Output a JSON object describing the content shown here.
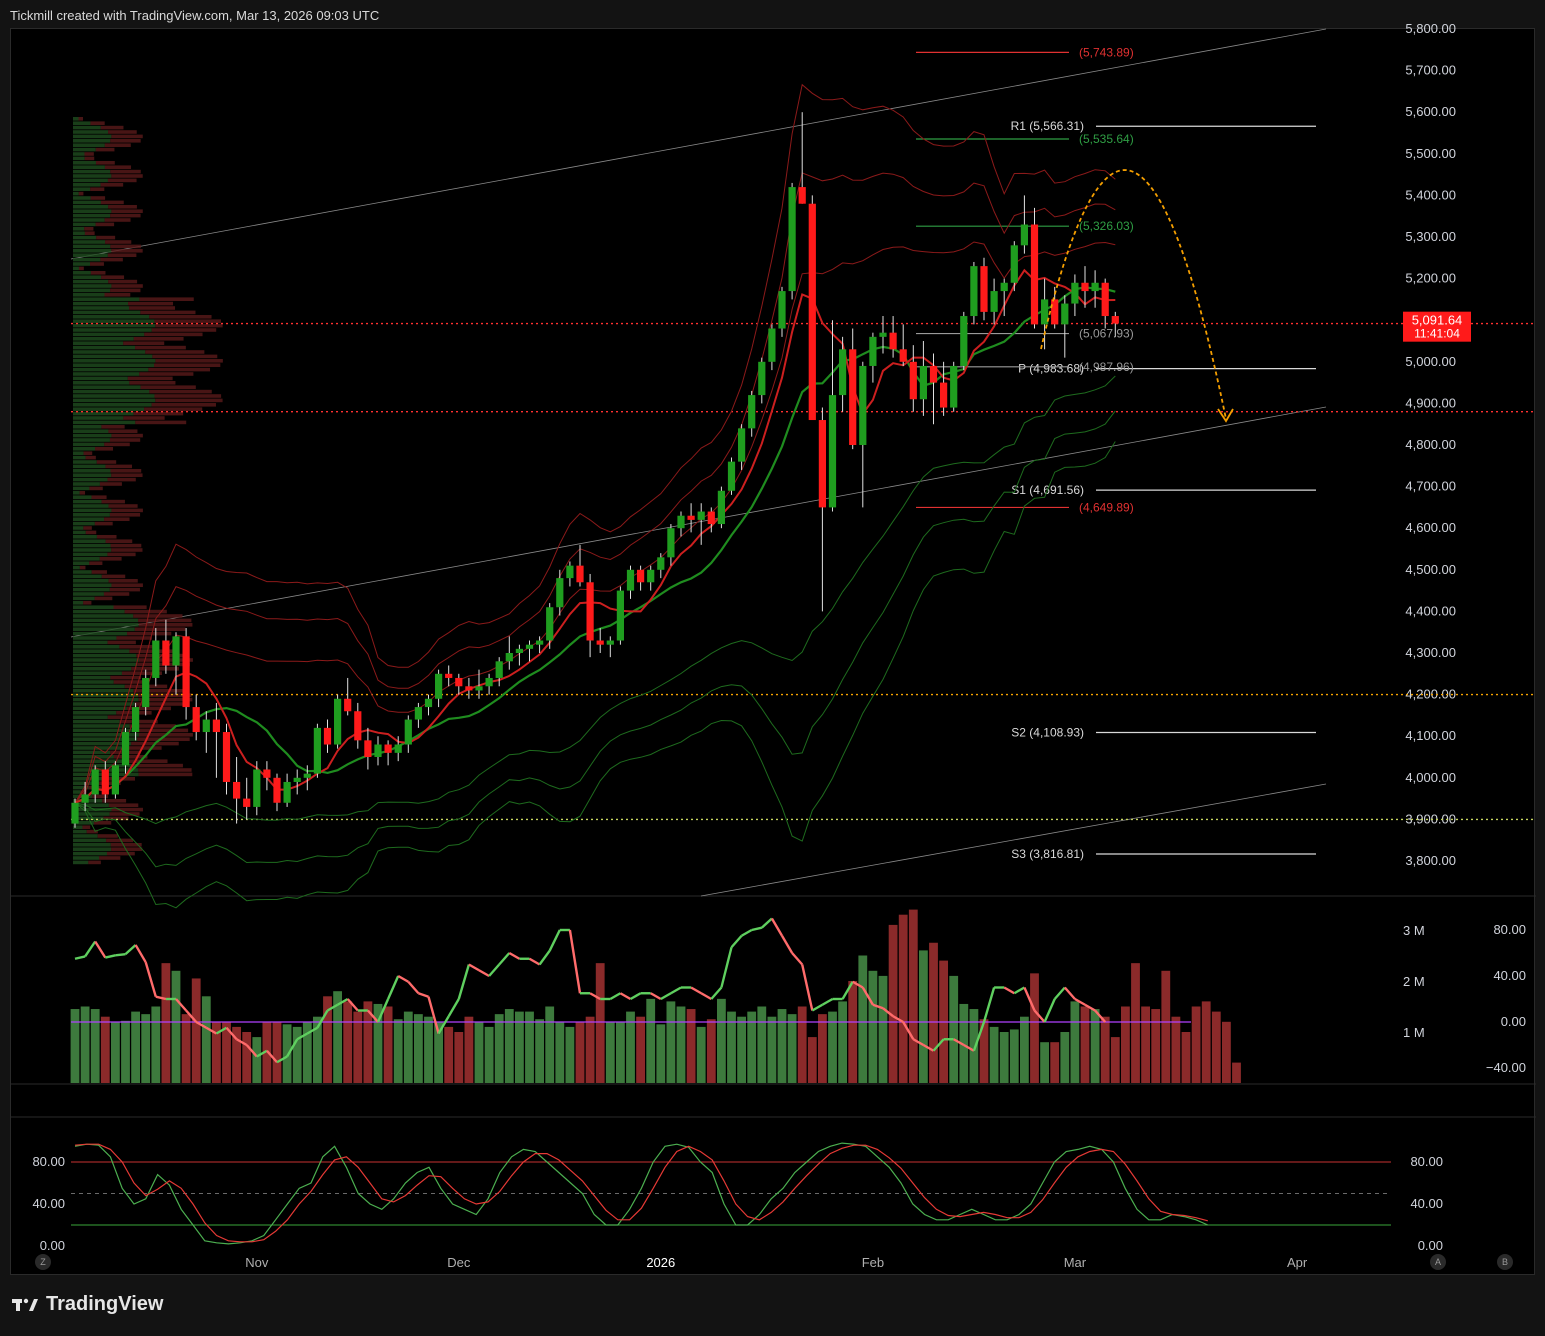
{
  "header": {
    "text": "Tickmill created with TradingView.com, Mar 13, 2026 09:03 UTC"
  },
  "footer": {
    "brand": "TradingView"
  },
  "corner_buttons": {
    "left": "Z",
    "right_a": "A",
    "right_b": "B"
  },
  "colors": {
    "up": "#1f9d1f",
    "down": "#ff1a1a",
    "price_tag": "#ff1a1a",
    "level_green": "#2f9e44",
    "level_red": "#e03131",
    "arc": "#f59f00"
  },
  "chart_data": [
    {
      "type": "candlestick",
      "panel": "price",
      "yaxis_ticks": [
        "5,800.00",
        "5,700.00",
        "5,600.00",
        "5,500.00",
        "5,400.00",
        "5,300.00",
        "5,200.00",
        "5,100.00",
        "5,000.00",
        "4,900.00",
        "4,800.00",
        "4,700.00",
        "4,600.00",
        "4,500.00",
        "4,400.00",
        "4,300.00",
        "4,200.00",
        "4,100.00",
        "4,000.00",
        "3,900.00",
        "3,800.00"
      ],
      "ylim": [
        3720,
        5810
      ],
      "xaxis_ticks": [
        {
          "label": "Nov",
          "bar": 18
        },
        {
          "label": "Dec",
          "bar": 38
        },
        {
          "label": "2026",
          "bar": 58
        },
        {
          "label": "Feb",
          "bar": 79
        },
        {
          "label": "Mar",
          "bar": 99
        },
        {
          "label": "Apr",
          "bar": 121
        }
      ],
      "last_price": "5,091.64",
      "countdown": "11:41:04",
      "candles": [
        [
          3890,
          3950,
          3880,
          3940
        ],
        [
          3940,
          3990,
          3920,
          3960
        ],
        [
          3960,
          4030,
          3940,
          4020
        ],
        [
          4020,
          4040,
          3940,
          3960
        ],
        [
          3960,
          4040,
          3950,
          4030
        ],
        [
          4030,
          4120,
          4010,
          4110
        ],
        [
          4110,
          4180,
          4090,
          4170
        ],
        [
          4170,
          4260,
          4150,
          4240
        ],
        [
          4240,
          4360,
          4220,
          4330
        ],
        [
          4330,
          4380,
          4250,
          4270
        ],
        [
          4270,
          4350,
          4200,
          4340
        ],
        [
          4340,
          4360,
          4140,
          4170
        ],
        [
          4170,
          4200,
          4090,
          4110
        ],
        [
          4110,
          4160,
          4060,
          4140
        ],
        [
          4140,
          4180,
          4000,
          4110
        ],
        [
          4110,
          4130,
          3960,
          3990
        ],
        [
          3990,
          4050,
          3890,
          3950
        ],
        [
          3950,
          4000,
          3900,
          3930
        ],
        [
          3930,
          4040,
          3910,
          4020
        ],
        [
          4020,
          4040,
          3970,
          4000
        ],
        [
          4000,
          4010,
          3920,
          3940
        ],
        [
          3940,
          4010,
          3930,
          3990
        ],
        [
          3990,
          4020,
          3960,
          4000
        ],
        [
          4000,
          4030,
          3970,
          4010
        ],
        [
          4010,
          4130,
          4000,
          4120
        ],
        [
          4120,
          4140,
          4060,
          4080
        ],
        [
          4080,
          4200,
          4070,
          4190
        ],
        [
          4190,
          4240,
          4150,
          4160
        ],
        [
          4160,
          4180,
          4070,
          4090
        ],
        [
          4090,
          4120,
          4020,
          4050
        ],
        [
          4050,
          4100,
          4030,
          4080
        ],
        [
          4080,
          4090,
          4030,
          4060
        ],
        [
          4060,
          4100,
          4040,
          4080
        ],
        [
          4080,
          4150,
          4060,
          4140
        ],
        [
          4140,
          4180,
          4120,
          4170
        ],
        [
          4170,
          4200,
          4150,
          4190
        ],
        [
          4190,
          4260,
          4170,
          4250
        ],
        [
          4250,
          4270,
          4220,
          4240
        ],
        [
          4240,
          4250,
          4200,
          4220
        ],
        [
          4220,
          4240,
          4190,
          4210
        ],
        [
          4210,
          4260,
          4190,
          4220
        ],
        [
          4220,
          4250,
          4200,
          4240
        ],
        [
          4240,
          4290,
          4220,
          4280
        ],
        [
          4280,
          4340,
          4260,
          4300
        ],
        [
          4300,
          4320,
          4270,
          4310
        ],
        [
          4310,
          4330,
          4280,
          4320
        ],
        [
          4320,
          4340,
          4300,
          4330
        ],
        [
          4330,
          4420,
          4310,
          4410
        ],
        [
          4410,
          4500,
          4390,
          4480
        ],
        [
          4480,
          4520,
          4460,
          4510
        ],
        [
          4510,
          4560,
          4460,
          4470
        ],
        [
          4470,
          4490,
          4290,
          4330
        ],
        [
          4330,
          4360,
          4300,
          4320
        ],
        [
          4320,
          4340,
          4290,
          4330
        ],
        [
          4330,
          4460,
          4320,
          4450
        ],
        [
          4450,
          4510,
          4430,
          4500
        ],
        [
          4500,
          4510,
          4450,
          4470
        ],
        [
          4470,
          4510,
          4450,
          4500
        ],
        [
          4500,
          4540,
          4480,
          4530
        ],
        [
          4530,
          4610,
          4510,
          4600
        ],
        [
          4600,
          4640,
          4580,
          4630
        ],
        [
          4630,
          4660,
          4590,
          4620
        ],
        [
          4620,
          4660,
          4560,
          4640
        ],
        [
          4640,
          4650,
          4590,
          4610
        ],
        [
          4610,
          4700,
          4600,
          4690
        ],
        [
          4690,
          4770,
          4680,
          4760
        ],
        [
          4760,
          4850,
          4740,
          4840
        ],
        [
          4840,
          4930,
          4820,
          4920
        ],
        [
          4920,
          5010,
          4900,
          5000
        ],
        [
          5000,
          5090,
          4980,
          5080
        ],
        [
          5080,
          5180,
          5060,
          5170
        ],
        [
          5170,
          5430,
          5150,
          5420
        ],
        [
          5420,
          5600,
          5380,
          5380
        ],
        [
          5380,
          5400,
          4860,
          4860
        ],
        [
          4860,
          4890,
          4400,
          4650
        ],
        [
          4650,
          5100,
          4640,
          4920
        ],
        [
          4920,
          5060,
          4880,
          5030
        ],
        [
          5030,
          5080,
          4790,
          4800
        ],
        [
          4800,
          5000,
          4650,
          4990
        ],
        [
          4990,
          5070,
          4950,
          5060
        ],
        [
          5060,
          5110,
          5020,
          5070
        ],
        [
          5070,
          5110,
          5010,
          5030
        ],
        [
          5030,
          5090,
          4990,
          5000
        ],
        [
          5000,
          5040,
          4880,
          4910
        ],
        [
          4910,
          5050,
          4870,
          4990
        ],
        [
          4990,
          5020,
          4850,
          4950
        ],
        [
          4950,
          5000,
          4870,
          4890
        ],
        [
          4890,
          5000,
          4880,
          4990
        ],
        [
          4990,
          5120,
          4980,
          5110
        ],
        [
          5110,
          5240,
          5090,
          5230
        ],
        [
          5230,
          5250,
          5100,
          5120
        ],
        [
          5120,
          5200,
          5090,
          5170
        ],
        [
          5170,
          5200,
          5110,
          5190
        ],
        [
          5190,
          5290,
          5170,
          5280
        ],
        [
          5280,
          5400,
          5260,
          5330
        ],
        [
          5330,
          5370,
          5080,
          5090
        ],
        [
          5090,
          5200,
          5030,
          5150
        ],
        [
          5150,
          5180,
          5080,
          5090
        ],
        [
          5090,
          5160,
          5010,
          5140
        ],
        [
          5140,
          5210,
          5110,
          5190
        ],
        [
          5190,
          5230,
          5130,
          5170
        ],
        [
          5170,
          5220,
          5130,
          5190
        ],
        [
          5190,
          5200,
          5080,
          5110
        ],
        [
          5110,
          5120,
          5060,
          5092
        ]
      ],
      "levels": [
        {
          "label": "(5,743.89)",
          "value": 5743.89,
          "color": "#e03131"
        },
        {
          "label": "R1 (5,566.31)",
          "value": 5566.31,
          "color": "#d9d9d9"
        },
        {
          "label": "(5,535.64)",
          "value": 5535.64,
          "color": "#2f9e44"
        },
        {
          "label": "(5,326.03)",
          "value": 5326.03,
          "color": "#2f9e44"
        },
        {
          "label": "(5,067.93)",
          "value": 5067.93,
          "color": "#9a9a9a"
        },
        {
          "label": "P (4,983.68)",
          "value": 4983.68,
          "color": "#d9d9d9"
        },
        {
          "label": "(4,987.96)",
          "value": 4987.96,
          "color": "#9a9a9a"
        },
        {
          "label": "S1 (4,691.56)",
          "value": 4691.56,
          "color": "#d9d9d9"
        },
        {
          "label": "(4,649.89)",
          "value": 4649.89,
          "color": "#e03131"
        },
        {
          "label": "S2 (4,108.93)",
          "value": 4108.93,
          "color": "#d9d9d9"
        },
        {
          "label": "S3 (3,816.81)",
          "value": 3816.81,
          "color": "#d9d9d9"
        }
      ],
      "horizontal_dotted": [
        {
          "value": 4880,
          "color": "#ff3030"
        },
        {
          "value": 4200,
          "color": "#f5a300"
        },
        {
          "value": 3900,
          "color": "#c8d860"
        },
        {
          "value": 5092,
          "color": "#ff3030"
        }
      ]
    },
    {
      "type": "bar+line",
      "panel": "volume",
      "yaxis_left_ticks": [
        "3 M",
        "2 M",
        "1 M"
      ],
      "yaxis_right_ticks": [
        "80.00",
        "40.00",
        "0.00",
        "−40.00"
      ],
      "volume_millions": [
        1.45,
        1.5,
        1.45,
        1.3,
        1.2,
        1.22,
        1.4,
        1.35,
        1.5,
        2.35,
        2.2,
        1.35,
        2.05,
        1.7,
        1.2,
        1.2,
        1.1,
        1.0,
        0.9,
        1.2,
        1.2,
        1.15,
        1.1,
        1.2,
        1.3,
        1.7,
        1.8,
        1.6,
        1.4,
        1.6,
        1.55,
        1.5,
        1.25,
        1.4,
        1.35,
        1.3,
        1.2,
        1.1,
        1.0,
        1.3,
        1.2,
        1.1,
        1.35,
        1.45,
        1.4,
        1.4,
        1.25,
        1.5,
        1.2,
        1.1,
        1.2,
        1.3,
        2.35,
        1.2,
        1.2,
        1.4,
        1.3,
        1.65,
        1.15,
        1.6,
        1.5,
        1.45,
        1.1,
        1.25,
        1.65,
        1.4,
        1.3,
        1.4,
        1.5,
        1.3,
        1.45,
        1.35,
        1.5,
        0.9,
        1.35,
        1.4,
        1.6,
        2.0,
        2.5,
        2.2,
        2.1,
        3.1,
        3.3,
        3.4,
        2.6,
        2.75,
        2.4,
        2.1,
        1.55,
        1.45,
        1.25,
        1.1,
        1.0,
        1.05,
        1.3,
        2.15,
        0.8,
        0.8,
        1.0,
        1.6,
        1.5,
        1.45,
        1.3,
        0.9,
        1.5,
        2.35,
        1.5,
        1.45,
        2.2,
        1.3,
        1.0,
        1.5,
        1.6,
        1.4,
        1.2,
        0.4
      ],
      "oscillator": [
        55,
        57,
        70,
        56,
        58,
        59,
        67,
        52,
        22,
        20,
        20,
        10,
        0,
        -5,
        -10,
        -5,
        -15,
        -20,
        -30,
        -25,
        -35,
        -30,
        -15,
        -10,
        -5,
        10,
        15,
        20,
        10,
        10,
        0,
        20,
        40,
        35,
        25,
        22,
        -10,
        5,
        20,
        50,
        45,
        40,
        50,
        60,
        55,
        55,
        50,
        62,
        80,
        80,
        25,
        25,
        20,
        20,
        25,
        20,
        25,
        25,
        20,
        25,
        30,
        30,
        25,
        20,
        30,
        65,
        75,
        80,
        82,
        90,
        75,
        60,
        50,
        10,
        15,
        20,
        20,
        35,
        30,
        15,
        12,
        5,
        0,
        -15,
        -20,
        -25,
        -15,
        -15,
        -20,
        -25,
        0,
        30,
        30,
        25,
        30,
        10,
        0,
        20,
        30,
        20,
        15,
        10,
        0
      ],
      "zero_line_color": "#b040ff"
    },
    {
      "type": "line",
      "panel": "stochastic",
      "yaxis_left_ticks": [
        "80.00",
        "40.00",
        "0.00"
      ],
      "yaxis_right_ticks": [
        "80.00",
        "40.00",
        "0.00"
      ],
      "upper_band": 80,
      "lower_band": 20,
      "mid_band": 50,
      "k_values": [
        95,
        97,
        96,
        85,
        55,
        40,
        45,
        68,
        58,
        35,
        20,
        5,
        3,
        2,
        3,
        5,
        10,
        25,
        40,
        55,
        60,
        85,
        95,
        75,
        50,
        40,
        35,
        45,
        60,
        70,
        75,
        55,
        40,
        35,
        30,
        45,
        70,
        85,
        92,
        90,
        80,
        70,
        60,
        50,
        30,
        20,
        20,
        35,
        55,
        80,
        95,
        97,
        94,
        80,
        70,
        40,
        20,
        20,
        30,
        45,
        55,
        70,
        80,
        90,
        95,
        98,
        97,
        95,
        85,
        75,
        60,
        40,
        30,
        25,
        25,
        30,
        35,
        30,
        25,
        25,
        30,
        40,
        60,
        80,
        90,
        92,
        95,
        92,
        80,
        55,
        35,
        25,
        25,
        30,
        28,
        25,
        20
      ],
      "d_values": [
        96,
        97,
        97,
        92,
        80,
        60,
        48,
        54,
        62,
        55,
        40,
        22,
        10,
        5,
        4,
        4,
        6,
        14,
        25,
        40,
        52,
        68,
        82,
        85,
        75,
        60,
        45,
        42,
        48,
        58,
        67,
        66,
        55,
        45,
        40,
        42,
        52,
        67,
        80,
        88,
        88,
        82,
        72,
        62,
        48,
        34,
        25,
        25,
        36,
        55,
        75,
        90,
        95,
        90,
        82,
        62,
        40,
        28,
        25,
        32,
        42,
        55,
        67,
        78,
        88,
        93,
        96,
        96,
        92,
        84,
        74,
        60,
        46,
        35,
        29,
        28,
        30,
        32,
        30,
        27,
        27,
        32,
        44,
        60,
        75,
        85,
        90,
        92,
        90,
        78,
        62,
        45,
        33,
        30,
        29,
        27,
        24
      ]
    }
  ]
}
